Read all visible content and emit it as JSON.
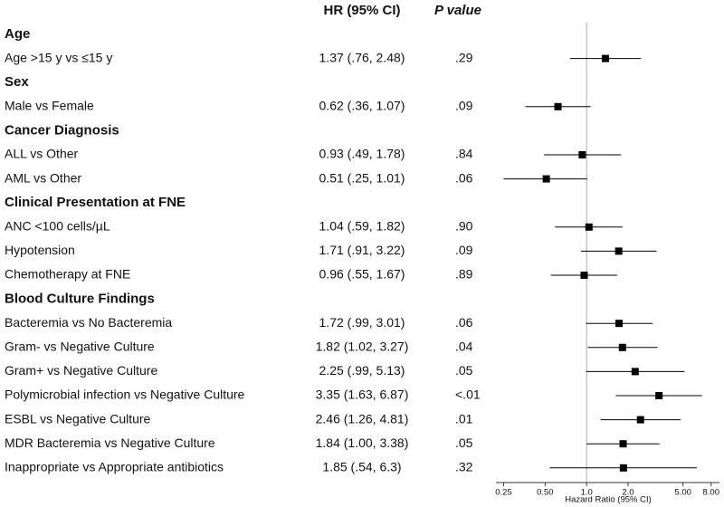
{
  "chart_data": {
    "type": "forest",
    "columns": {
      "estimate": "HR (95% CI)",
      "p": "P value"
    },
    "x_label": "Hazard Ratio (95% CI)",
    "log_x": true,
    "reference_line": 1,
    "xlim": [
      0.22,
      9.2
    ],
    "xticks": [
      0.25,
      {
        "value": 0.5,
        "label": "0.50"
      },
      {
        "value": 1,
        "label": "1.0"
      },
      {
        "value": 2,
        "label": "2.0"
      },
      {
        "value": 5,
        "label": "5.00"
      },
      {
        "value": 8,
        "label": "8.00"
      }
    ],
    "color": "#000000",
    "groups": [
      {
        "name": "Age",
        "rows": [
          {
            "label": "Age >15 y vs ≤15 y",
            "hr": 1.37,
            "lo": 0.76,
            "hi": 2.48,
            "value_label": "1.37 (.76, 2.48)",
            "p": ".29"
          }
        ]
      },
      {
        "name": "Sex",
        "rows": [
          {
            "label": "Male vs Female",
            "hr": 0.62,
            "lo": 0.36,
            "hi": 1.07,
            "value_label": "0.62 (.36, 1.07)",
            "p": ".09"
          }
        ]
      },
      {
        "name": "Cancer Diagnosis",
        "rows": [
          {
            "label": "ALL vs Other",
            "hr": 0.93,
            "lo": 0.49,
            "hi": 1.78,
            "value_label": "0.93 (.49, 1.78)",
            "p": ".84"
          },
          {
            "label": "AML vs Other",
            "hr": 0.51,
            "lo": 0.25,
            "hi": 1.01,
            "value_label": "0.51 (.25, 1.01)",
            "p": ".06"
          }
        ]
      },
      {
        "name": "Clinical Presentation at FNE",
        "rows": [
          {
            "label": "ANC <100 cells/µL",
            "hr": 1.04,
            "lo": 0.59,
            "hi": 1.82,
            "value_label": "1.04 (.59, 1.82)",
            "p": ".90"
          },
          {
            "label": "Hypotension",
            "hr": 1.71,
            "lo": 0.91,
            "hi": 3.22,
            "value_label": "1.71 (.91, 3.22)",
            "p": ".09"
          },
          {
            "label": "Chemotherapy at FNE",
            "hr": 0.96,
            "lo": 0.55,
            "hi": 1.67,
            "value_label": "0.96 (.55, 1.67)",
            "p": ".89"
          }
        ]
      },
      {
        "name": "Blood Culture Findings",
        "rows": [
          {
            "label": "Bacteremia vs No Bacteremia",
            "hr": 1.72,
            "lo": 0.99,
            "hi": 3.01,
            "value_label": "1.72 (.99, 3.01)",
            "p": ".06"
          },
          {
            "label": "Gram- vs Negative Culture",
            "hr": 1.82,
            "lo": 1.02,
            "hi": 3.27,
            "value_label": "1.82 (1.02, 3.27)",
            "p": ".04"
          },
          {
            "label": "Gram+ vs Negative Culture",
            "hr": 2.25,
            "lo": 0.99,
            "hi": 5.13,
            "value_label": "2.25 (.99, 5.13)",
            "p": ".05"
          },
          {
            "label": "Polymicrobial infection vs Negative Culture",
            "hr": 3.35,
            "lo": 1.63,
            "hi": 6.87,
            "value_label": "3.35 (1.63, 6.87)",
            "p": "<.01"
          },
          {
            "label": "ESBL vs Negative Culture",
            "hr": 2.46,
            "lo": 1.26,
            "hi": 4.81,
            "value_label": "2.46 (1.26, 4.81)",
            "p": ".01"
          },
          {
            "label": "MDR Bacteremia vs Negative Culture",
            "hr": 1.84,
            "lo": 1.0,
            "hi": 3.38,
            "value_label": "1.84 (1.00, 3.38)",
            "p": ".05"
          },
          {
            "label": "Inappropriate vs Appropriate antibiotics",
            "hr": 1.85,
            "lo": 0.54,
            "hi": 6.3,
            "value_label": "1.85 (.54, 6.3)",
            "p": ".32"
          }
        ]
      }
    ]
  }
}
